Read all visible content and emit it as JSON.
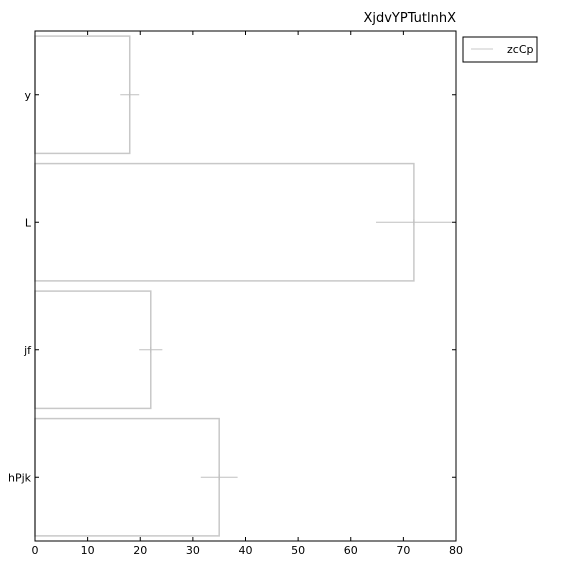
{
  "chart_data": {
    "type": "bar",
    "orientation": "horizontal",
    "title": "XjdvYPTutlnhX",
    "xlabel": "",
    "ylabel": "",
    "categories": [
      "y",
      "L",
      "jf",
      "hPjk"
    ],
    "series": [
      {
        "name": "zcCp",
        "values": [
          18,
          72,
          22,
          35
        ],
        "errors": [
          1.8,
          7.2,
          2.2,
          3.5
        ],
        "color": "#c8c8c8"
      }
    ],
    "xlim": [
      0,
      80
    ],
    "xticks": [
      0,
      10,
      20,
      30,
      40,
      50,
      60,
      70,
      80
    ],
    "grid": false,
    "legend_position": "top-right-outside"
  }
}
